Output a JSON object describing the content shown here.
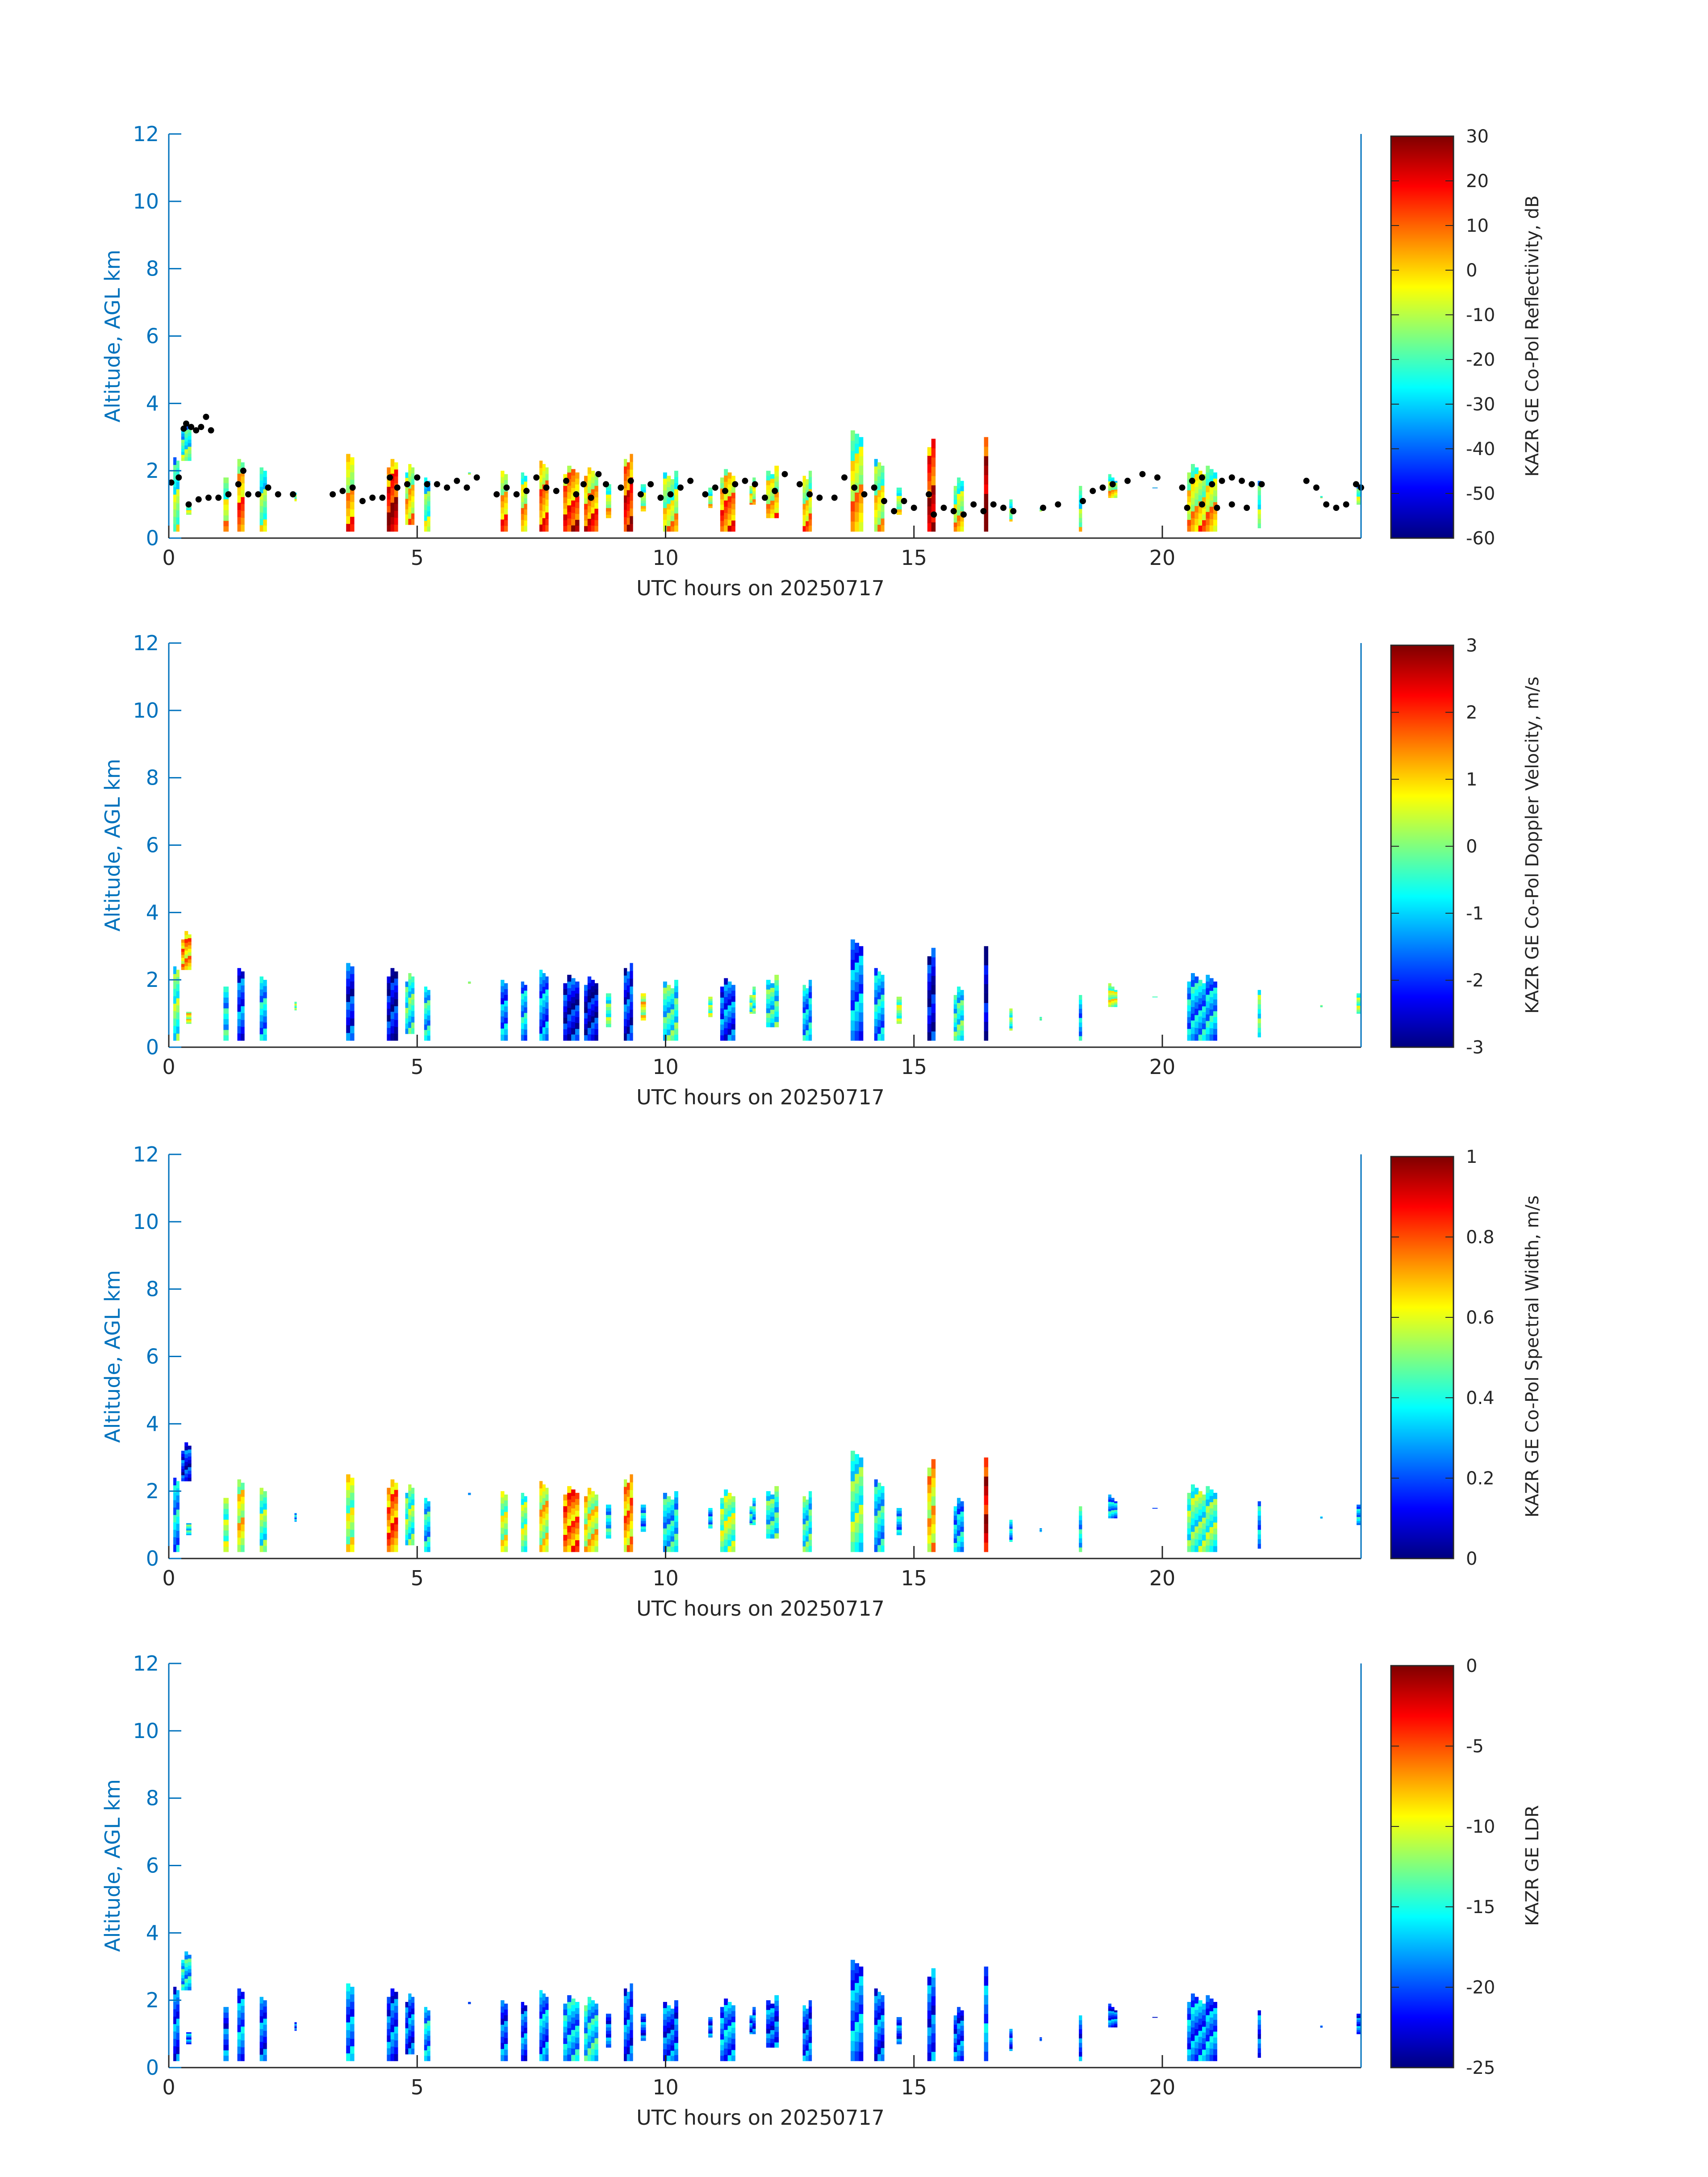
{
  "colors": {
    "axis": "#0072bd",
    "text": "#262626",
    "background": "#ffffff",
    "cbh_marker": "#000000"
  },
  "colormap": "jet",
  "chart_data": [
    {
      "type": "heatmap",
      "title": "",
      "xlabel": "UTC hours on 20250717",
      "ylabel": "Altitude, AGL km",
      "xlim": [
        0,
        24
      ],
      "ylim": [
        0,
        12
      ],
      "xticks": [
        0,
        5,
        10,
        15,
        20
      ],
      "yticks": [
        0,
        2,
        4,
        6,
        8,
        10,
        12
      ],
      "colorbar": {
        "label": "KAZR GE Co-Pol Reflectivity, dB",
        "limits": [
          -60,
          30
        ],
        "ticks": [
          -60,
          -50,
          -40,
          -30,
          -20,
          -10,
          0,
          10,
          20,
          30
        ]
      },
      "overlay": "cloud base height points (black)"
    },
    {
      "type": "heatmap",
      "title": "",
      "xlabel": "UTC hours on 20250717",
      "ylabel": "Altitude, AGL km",
      "xlim": [
        0,
        24
      ],
      "ylim": [
        0,
        12
      ],
      "xticks": [
        0,
        5,
        10,
        15,
        20
      ],
      "yticks": [
        0,
        2,
        4,
        6,
        8,
        10,
        12
      ],
      "colorbar": {
        "label": "KAZR GE Co-Pol Doppler Velocity, m/s",
        "limits": [
          -3,
          3
        ],
        "ticks": [
          -3,
          -2,
          -1,
          0,
          1,
          2,
          3
        ]
      }
    },
    {
      "type": "heatmap",
      "title": "",
      "xlabel": "UTC hours on 20250717",
      "ylabel": "Altitude, AGL km",
      "xlim": [
        0,
        24
      ],
      "ylim": [
        0,
        12
      ],
      "xticks": [
        0,
        5,
        10,
        15,
        20
      ],
      "yticks": [
        0,
        2,
        4,
        6,
        8,
        10,
        12
      ],
      "colorbar": {
        "label": "KAZR GE Co-Pol Spectral Width, m/s",
        "limits": [
          0,
          1
        ],
        "ticks": [
          0,
          0.2,
          0.4,
          0.6,
          0.8,
          1
        ]
      }
    },
    {
      "type": "heatmap",
      "title": "",
      "xlabel": "UTC hours on 20250717",
      "ylabel": "Altitude, AGL km",
      "xlim": [
        0,
        24
      ],
      "ylim": [
        0,
        12
      ],
      "xticks": [
        0,
        5,
        10,
        15,
        20
      ],
      "yticks": [
        0,
        2,
        4,
        6,
        8,
        10,
        12
      ],
      "colorbar": {
        "label": "KAZR GE LDR",
        "limits": [
          -25,
          0
        ],
        "ticks": [
          -25,
          -20,
          -15,
          -10,
          -5,
          0
        ]
      }
    }
  ],
  "cloud_columns": [
    {
      "t": 0.15,
      "w": 0.12,
      "top": 2.4,
      "base": 0.2,
      "v": [
        0.45,
        0.45,
        0.3,
        0.2
      ]
    },
    {
      "t": 0.35,
      "w": 0.2,
      "top": 3.5,
      "base": 2.3,
      "v": [
        0.4,
        0.7,
        0.15,
        0.35
      ]
    },
    {
      "t": 0.4,
      "w": 0.1,
      "top": 1.3,
      "base": 0.7,
      "v": [
        0.5,
        0.6,
        0.4,
        0.25
      ]
    },
    {
      "t": 1.15,
      "w": 0.1,
      "top": 2.0,
      "base": 0.2,
      "v": [
        0.55,
        0.35,
        0.5,
        0.2
      ]
    },
    {
      "t": 1.45,
      "w": 0.14,
      "top": 2.5,
      "base": 0.2,
      "v": [
        0.7,
        0.2,
        0.6,
        0.25
      ]
    },
    {
      "t": 1.9,
      "w": 0.14,
      "top": 2.2,
      "base": 0.2,
      "v": [
        0.45,
        0.3,
        0.45,
        0.2
      ]
    },
    {
      "t": 2.55,
      "w": 0.04,
      "top": 1.4,
      "base": 1.1,
      "v": [
        0.5,
        0.5,
        0.3,
        0.2
      ]
    },
    {
      "t": 3.65,
      "w": 0.16,
      "top": 2.5,
      "base": 0.2,
      "v": [
        0.65,
        0.15,
        0.55,
        0.25
      ]
    },
    {
      "t": 4.5,
      "w": 0.22,
      "top": 2.4,
      "base": 0.2,
      "v": [
        0.85,
        0.1,
        0.75,
        0.2
      ]
    },
    {
      "t": 4.85,
      "w": 0.18,
      "top": 2.2,
      "base": 0.4,
      "v": [
        0.6,
        0.4,
        0.45,
        0.2
      ]
    },
    {
      "t": 5.2,
      "w": 0.12,
      "top": 2.0,
      "base": 0.2,
      "v": [
        0.45,
        0.35,
        0.35,
        0.3
      ]
    },
    {
      "t": 6.05,
      "w": 0.05,
      "top": 2.1,
      "base": 1.9,
      "v": [
        0.55,
        0.55,
        0.3,
        0.2
      ]
    },
    {
      "t": 6.75,
      "w": 0.14,
      "top": 2.1,
      "base": 0.2,
      "v": [
        0.65,
        0.25,
        0.55,
        0.2
      ]
    },
    {
      "t": 7.15,
      "w": 0.12,
      "top": 2.0,
      "base": 0.2,
      "v": [
        0.6,
        0.3,
        0.5,
        0.2
      ]
    },
    {
      "t": 7.55,
      "w": 0.18,
      "top": 2.3,
      "base": 0.2,
      "v": [
        0.7,
        0.25,
        0.6,
        0.25
      ]
    },
    {
      "t": 8.1,
      "w": 0.32,
      "top": 2.2,
      "base": 0.2,
      "v": [
        0.75,
        0.12,
        0.75,
        0.3
      ]
    },
    {
      "t": 8.5,
      "w": 0.28,
      "top": 2.1,
      "base": 0.2,
      "v": [
        0.7,
        0.1,
        0.6,
        0.35
      ]
    },
    {
      "t": 8.85,
      "w": 0.1,
      "top": 1.8,
      "base": 0.6,
      "v": [
        0.55,
        0.45,
        0.35,
        0.2
      ]
    },
    {
      "t": 9.25,
      "w": 0.18,
      "top": 2.5,
      "base": 0.2,
      "v": [
        0.8,
        0.15,
        0.7,
        0.2
      ]
    },
    {
      "t": 9.55,
      "w": 0.1,
      "top": 1.7,
      "base": 0.8,
      "v": [
        0.5,
        0.6,
        0.3,
        0.2
      ]
    },
    {
      "t": 10.1,
      "w": 0.3,
      "top": 2.0,
      "base": 0.2,
      "v": [
        0.55,
        0.4,
        0.35,
        0.2
      ]
    },
    {
      "t": 10.9,
      "w": 0.08,
      "top": 1.5,
      "base": 0.9,
      "v": [
        0.5,
        0.5,
        0.3,
        0.2
      ]
    },
    {
      "t": 11.25,
      "w": 0.3,
      "top": 2.1,
      "base": 0.2,
      "v": [
        0.7,
        0.2,
        0.5,
        0.25
      ]
    },
    {
      "t": 11.75,
      "w": 0.12,
      "top": 1.8,
      "base": 1.0,
      "v": [
        0.55,
        0.45,
        0.35,
        0.2
      ]
    },
    {
      "t": 12.15,
      "w": 0.25,
      "top": 2.2,
      "base": 0.6,
      "v": [
        0.6,
        0.4,
        0.4,
        0.2
      ]
    },
    {
      "t": 12.85,
      "w": 0.18,
      "top": 2.0,
      "base": 0.2,
      "v": [
        0.6,
        0.3,
        0.4,
        0.2
      ]
    },
    {
      "t": 13.85,
      "w": 0.25,
      "top": 3.3,
      "base": 0.2,
      "v": [
        0.6,
        0.25,
        0.45,
        0.25
      ]
    },
    {
      "t": 14.3,
      "w": 0.2,
      "top": 2.4,
      "base": 0.2,
      "v": [
        0.55,
        0.3,
        0.35,
        0.2
      ]
    },
    {
      "t": 14.7,
      "w": 0.1,
      "top": 1.5,
      "base": 0.7,
      "v": [
        0.5,
        0.5,
        0.3,
        0.2
      ]
    },
    {
      "t": 15.35,
      "w": 0.16,
      "top": 3.0,
      "base": 0.2,
      "v": [
        0.85,
        0.1,
        0.65,
        0.2
      ]
    },
    {
      "t": 15.9,
      "w": 0.2,
      "top": 1.8,
      "base": 0.2,
      "v": [
        0.55,
        0.4,
        0.3,
        0.2
      ]
    },
    {
      "t": 16.45,
      "w": 0.08,
      "top": 3.2,
      "base": 0.2,
      "v": [
        0.95,
        0.05,
        0.9,
        0.25
      ]
    },
    {
      "t": 16.95,
      "w": 0.06,
      "top": 1.3,
      "base": 0.5,
      "v": [
        0.45,
        0.45,
        0.3,
        0.2
      ]
    },
    {
      "t": 17.55,
      "w": 0.04,
      "top": 1.0,
      "base": 0.8,
      "v": [
        0.45,
        0.45,
        0.3,
        0.2
      ]
    },
    {
      "t": 18.35,
      "w": 0.06,
      "top": 1.6,
      "base": 0.2,
      "v": [
        0.45,
        0.3,
        0.35,
        0.2
      ]
    },
    {
      "t": 19.0,
      "w": 0.18,
      "top": 1.9,
      "base": 1.2,
      "v": [
        0.55,
        0.55,
        0.3,
        0.2
      ]
    },
    {
      "t": 19.85,
      "w": 0.1,
      "top": 1.8,
      "base": 1.5,
      "v": [
        0.5,
        0.55,
        0.3,
        0.2
      ]
    },
    {
      "t": 20.8,
      "w": 0.6,
      "top": 2.2,
      "base": 0.2,
      "v": [
        0.6,
        0.3,
        0.45,
        0.25
      ]
    },
    {
      "t": 21.95,
      "w": 0.06,
      "top": 1.9,
      "base": 0.3,
      "v": [
        0.45,
        0.45,
        0.3,
        0.2
      ]
    },
    {
      "t": 23.2,
      "w": 0.04,
      "top": 1.4,
      "base": 1.2,
      "v": [
        0.45,
        0.45,
        0.3,
        0.2
      ]
    },
    {
      "t": 23.95,
      "w": 0.08,
      "top": 1.7,
      "base": 1.0,
      "v": [
        0.45,
        0.5,
        0.3,
        0.2
      ]
    }
  ],
  "cbh_points": [
    [
      0.05,
      1.65
    ],
    [
      0.2,
      1.8
    ],
    [
      0.3,
      3.25
    ],
    [
      0.35,
      3.4
    ],
    [
      0.45,
      3.3
    ],
    [
      0.55,
      3.2
    ],
    [
      0.65,
      3.3
    ],
    [
      0.75,
      3.6
    ],
    [
      0.85,
      3.2
    ],
    [
      0.4,
      1.0
    ],
    [
      0.6,
      1.15
    ],
    [
      0.8,
      1.2
    ],
    [
      1.0,
      1.2
    ],
    [
      1.2,
      1.3
    ],
    [
      1.4,
      1.6
    ],
    [
      1.5,
      2.0
    ],
    [
      1.6,
      1.3
    ],
    [
      1.8,
      1.3
    ],
    [
      2.0,
      1.5
    ],
    [
      2.2,
      1.3
    ],
    [
      2.5,
      1.3
    ],
    [
      3.3,
      1.3
    ],
    [
      3.5,
      1.4
    ],
    [
      3.7,
      1.5
    ],
    [
      3.9,
      1.1
    ],
    [
      4.1,
      1.2
    ],
    [
      4.3,
      1.2
    ],
    [
      4.45,
      1.8
    ],
    [
      4.6,
      1.5
    ],
    [
      4.8,
      1.6
    ],
    [
      5.0,
      1.8
    ],
    [
      5.2,
      1.6
    ],
    [
      5.4,
      1.6
    ],
    [
      5.6,
      1.5
    ],
    [
      5.8,
      1.7
    ],
    [
      6.0,
      1.5
    ],
    [
      6.2,
      1.8
    ],
    [
      6.6,
      1.3
    ],
    [
      6.8,
      1.5
    ],
    [
      7.0,
      1.3
    ],
    [
      7.2,
      1.4
    ],
    [
      7.4,
      1.8
    ],
    [
      7.6,
      1.5
    ],
    [
      7.8,
      1.4
    ],
    [
      8.0,
      1.7
    ],
    [
      8.2,
      1.3
    ],
    [
      8.35,
      1.6
    ],
    [
      8.5,
      1.2
    ],
    [
      8.65,
      1.9
    ],
    [
      8.8,
      1.6
    ],
    [
      9.1,
      1.5
    ],
    [
      9.3,
      1.7
    ],
    [
      9.5,
      1.3
    ],
    [
      9.7,
      1.6
    ],
    [
      9.9,
      1.2
    ],
    [
      10.1,
      1.3
    ],
    [
      10.3,
      1.5
    ],
    [
      10.5,
      1.7
    ],
    [
      10.8,
      1.3
    ],
    [
      11.0,
      1.5
    ],
    [
      11.2,
      1.4
    ],
    [
      11.4,
      1.6
    ],
    [
      11.6,
      1.7
    ],
    [
      11.8,
      1.6
    ],
    [
      12.0,
      1.2
    ],
    [
      12.2,
      1.4
    ],
    [
      12.4,
      1.9
    ],
    [
      12.7,
      1.6
    ],
    [
      12.9,
      1.3
    ],
    [
      13.1,
      1.2
    ],
    [
      13.4,
      1.2
    ],
    [
      13.6,
      1.8
    ],
    [
      13.8,
      1.5
    ],
    [
      14.0,
      1.3
    ],
    [
      14.2,
      1.5
    ],
    [
      14.4,
      1.1
    ],
    [
      14.6,
      0.8
    ],
    [
      14.8,
      1.1
    ],
    [
      15.0,
      0.9
    ],
    [
      15.3,
      1.3
    ],
    [
      15.4,
      0.7
    ],
    [
      15.6,
      0.9
    ],
    [
      15.8,
      0.8
    ],
    [
      16.0,
      0.7
    ],
    [
      16.2,
      1.0
    ],
    [
      16.4,
      0.8
    ],
    [
      16.6,
      1.0
    ],
    [
      16.8,
      0.9
    ],
    [
      17.0,
      0.8
    ],
    [
      17.6,
      0.9
    ],
    [
      17.9,
      1.0
    ],
    [
      18.4,
      1.1
    ],
    [
      18.6,
      1.4
    ],
    [
      18.8,
      1.5
    ],
    [
      19.0,
      1.6
    ],
    [
      19.3,
      1.7
    ],
    [
      19.6,
      1.9
    ],
    [
      19.9,
      1.8
    ],
    [
      20.4,
      1.5
    ],
    [
      20.6,
      1.7
    ],
    [
      20.8,
      1.8
    ],
    [
      21.0,
      1.6
    ],
    [
      21.2,
      1.7
    ],
    [
      21.4,
      1.8
    ],
    [
      21.6,
      1.7
    ],
    [
      21.8,
      1.6
    ],
    [
      22.0,
      1.6
    ],
    [
      20.5,
      0.9
    ],
    [
      20.8,
      1.0
    ],
    [
      21.1,
      0.9
    ],
    [
      21.4,
      1.0
    ],
    [
      21.7,
      0.9
    ],
    [
      22.9,
      1.7
    ],
    [
      23.1,
      1.5
    ],
    [
      23.3,
      1.0
    ],
    [
      23.5,
      0.9
    ],
    [
      23.7,
      1.0
    ],
    [
      23.9,
      1.6
    ],
    [
      24.0,
      1.5
    ]
  ]
}
